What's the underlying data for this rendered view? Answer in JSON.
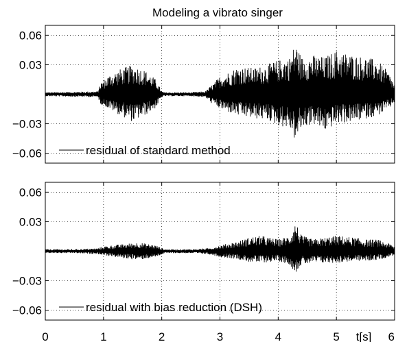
{
  "chart_data": {
    "title": "Modeling a vibrato singer",
    "type": "line",
    "xlabel": "t[s]",
    "xlim": [
      0,
      6
    ],
    "x_ticks": [
      0,
      1,
      2,
      3,
      4,
      5,
      6
    ],
    "x_tick_labels": [
      "0",
      "1",
      "2",
      "3",
      "4",
      "5",
      "6"
    ],
    "grid": true,
    "panels": [
      {
        "legend": "residual of standard method",
        "legend_placement": "bottom-left",
        "ylim": [
          -0.07,
          0.07
        ],
        "y_ticks": [
          -0.06,
          -0.03,
          0.03,
          0.06
        ],
        "y_tick_labels": [
          "−0.06",
          "−0.03",
          "0.03",
          "0.06"
        ],
        "envelope": {
          "t": [
            0,
            0.5,
            0.9,
            0.95,
            1.1,
            1.3,
            1.5,
            1.7,
            1.9,
            2.0,
            2.05,
            2.5,
            2.75,
            2.85,
            3.0,
            3.3,
            3.6,
            3.8,
            4.0,
            4.2,
            4.3,
            4.4,
            4.6,
            4.8,
            5.0,
            5.3,
            5.5,
            5.7,
            5.9,
            6.0
          ],
          "upper": [
            0.002,
            0.0025,
            0.003,
            0.012,
            0.02,
            0.026,
            0.03,
            0.025,
            0.015,
            0.003,
            0.002,
            0.002,
            0.003,
            0.009,
            0.018,
            0.028,
            0.027,
            0.03,
            0.035,
            0.038,
            0.053,
            0.038,
            0.04,
            0.038,
            0.045,
            0.04,
            0.038,
            0.035,
            0.022,
            0.01
          ],
          "lower": [
            0.002,
            0.0025,
            0.003,
            0.01,
            0.015,
            0.022,
            0.028,
            0.022,
            0.014,
            0.003,
            0.002,
            0.002,
            0.003,
            0.009,
            0.015,
            0.022,
            0.025,
            0.026,
            0.032,
            0.035,
            0.049,
            0.035,
            0.03,
            0.038,
            0.03,
            0.028,
            0.025,
            0.022,
            0.015,
            0.008
          ]
        }
      },
      {
        "legend": "residual with bias reduction (DSH)",
        "legend_placement": "bottom-left",
        "ylim": [
          -0.07,
          0.07
        ],
        "y_ticks": [
          -0.06,
          -0.03,
          0.03,
          0.06
        ],
        "y_tick_labels": [
          "−0.06",
          "−0.03",
          "0.03",
          "0.06"
        ],
        "envelope": {
          "t": [
            0,
            0.5,
            0.9,
            1.0,
            1.3,
            1.6,
            1.9,
            2.05,
            2.5,
            2.8,
            3.0,
            3.3,
            3.5,
            3.7,
            4.0,
            4.2,
            4.3,
            4.4,
            4.6,
            4.8,
            5.0,
            5.3,
            5.5,
            5.7,
            5.9,
            6.0
          ],
          "upper": [
            0.002,
            0.002,
            0.003,
            0.005,
            0.007,
            0.009,
            0.006,
            0.002,
            0.002,
            0.003,
            0.006,
            0.01,
            0.014,
            0.016,
            0.012,
            0.016,
            0.03,
            0.016,
            0.012,
            0.014,
            0.016,
            0.014,
            0.012,
            0.012,
            0.008,
            0.005
          ],
          "lower": [
            0.002,
            0.002,
            0.003,
            0.004,
            0.007,
            0.009,
            0.006,
            0.002,
            0.002,
            0.003,
            0.006,
            0.008,
            0.011,
            0.012,
            0.01,
            0.014,
            0.022,
            0.014,
            0.012,
            0.012,
            0.012,
            0.01,
            0.01,
            0.009,
            0.006,
            0.004
          ]
        }
      }
    ]
  }
}
